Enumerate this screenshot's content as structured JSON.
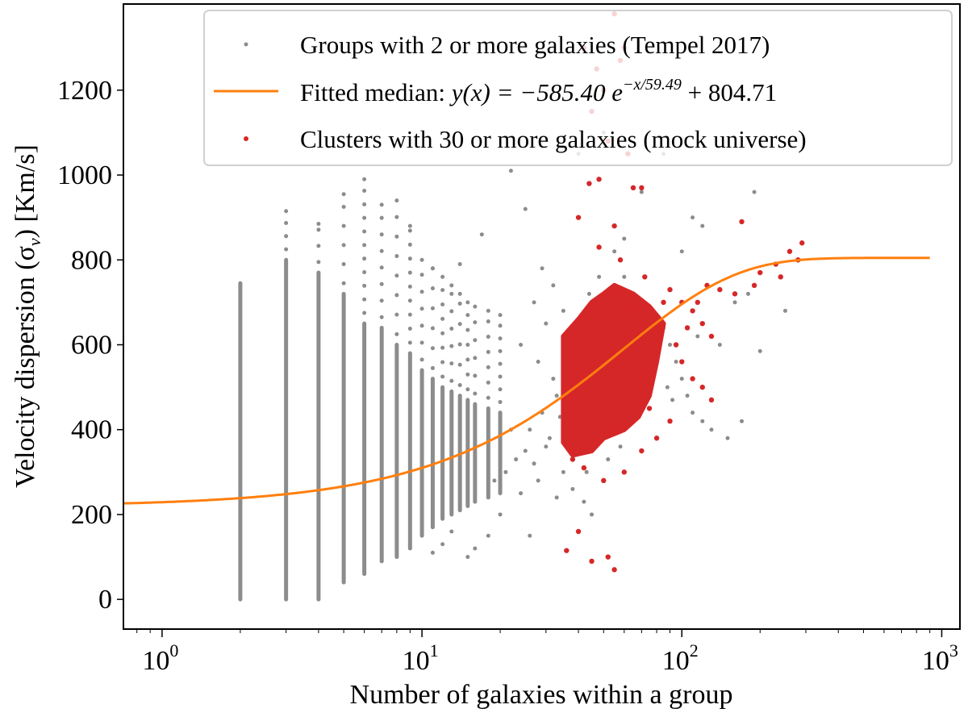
{
  "chart_data": {
    "type": "scatter",
    "xlabel": "Number of galaxies within a group",
    "ylabel": "Velocity dispersion (σ",
    "ylabel_sub": "v",
    "ylabel_unit": ") [Km/s]",
    "xscale": "log",
    "xlim": [
      0.71,
      1175
    ],
    "ylim": [
      -70,
      1403
    ],
    "xticks": [
      {
        "base": "10",
        "exp": "0",
        "value": 1
      },
      {
        "base": "10",
        "exp": "1",
        "value": 10
      },
      {
        "base": "10",
        "exp": "2",
        "value": 100
      },
      {
        "base": "10",
        "exp": "3",
        "value": 1000
      }
    ],
    "yticks": [
      0,
      200,
      400,
      600,
      800,
      1000,
      1200
    ],
    "grid": false,
    "legend": {
      "placement": "top-right",
      "entries": [
        {
          "label": "Groups with 2 or more galaxies (Tempel 2017)",
          "marker": "dot",
          "color": "#8c8c8c"
        },
        {
          "label_prefix": "Fitted median: ",
          "label_formula": "y(x) = −585.40 e",
          "label_exp": "−x/59.49",
          "label_suffix": " + 804.71",
          "marker": "line",
          "color": "#ff7f0e"
        },
        {
          "label": "Clusters with 30 or more galaxies (mock universe)",
          "marker": "dot",
          "color": "#d62728"
        }
      ]
    },
    "fit": {
      "a": -585.4,
      "b": 59.49,
      "c": 804.71,
      "x_range": [
        0.71,
        900
      ],
      "color": "#ff7f0e"
    },
    "groups": {
      "color": "#8c8c8c",
      "columns": [
        {
          "n": 2,
          "dense": [
            0,
            745
          ],
          "max": 745
        },
        {
          "n": 3,
          "dense": [
            0,
            800
          ],
          "max": 915
        },
        {
          "n": 4,
          "dense": [
            0,
            770
          ],
          "max": 885
        },
        {
          "n": 5,
          "dense": [
            40,
            720
          ],
          "max": 955
        },
        {
          "n": 6,
          "dense": [
            60,
            650
          ],
          "max": 990
        },
        {
          "n": 7,
          "dense": [
            90,
            640
          ],
          "max": 930
        },
        {
          "n": 8,
          "dense": [
            100,
            600
          ],
          "max": 940
        },
        {
          "n": 9,
          "dense": [
            120,
            580
          ],
          "max": 880
        },
        {
          "n": 10,
          "dense": [
            150,
            540
          ],
          "max": 800
        },
        {
          "n": 11,
          "dense": [
            170,
            520
          ],
          "max": 780
        },
        {
          "n": 12,
          "dense": [
            190,
            500
          ],
          "max": 760
        },
        {
          "n": 13,
          "dense": [
            200,
            490
          ],
          "max": 740
        },
        {
          "n": 14,
          "dense": [
            210,
            480
          ],
          "max": 720
        },
        {
          "n": 15,
          "dense": [
            220,
            470
          ],
          "max": 700
        },
        {
          "n": 16,
          "dense": [
            230,
            460
          ],
          "max": 690
        },
        {
          "n": 18,
          "dense": [
            240,
            450
          ],
          "max": 680
        },
        {
          "n": 20,
          "dense": [
            250,
            440
          ],
          "max": 670
        }
      ],
      "points": [
        [
          22,
          1010
        ],
        [
          25,
          920
        ],
        [
          17,
          860
        ],
        [
          14,
          790
        ],
        [
          27,
          700
        ],
        [
          30,
          650
        ],
        [
          24,
          600
        ],
        [
          28,
          560
        ],
        [
          32,
          520
        ],
        [
          33,
          480
        ],
        [
          29,
          440
        ],
        [
          26,
          400
        ],
        [
          31,
          380
        ],
        [
          23,
          330
        ],
        [
          21,
          300
        ],
        [
          19,
          280
        ],
        [
          35,
          300
        ],
        [
          38,
          260
        ],
        [
          42,
          230
        ],
        [
          45,
          200
        ],
        [
          40,
          660
        ],
        [
          44,
          720
        ],
        [
          48,
          760
        ],
        [
          55,
          820
        ],
        [
          60,
          760
        ],
        [
          65,
          700
        ],
        [
          75,
          680
        ],
        [
          85,
          640
        ],
        [
          90,
          600
        ],
        [
          95,
          560
        ],
        [
          100,
          520
        ],
        [
          105,
          480
        ],
        [
          110,
          440
        ],
        [
          120,
          420
        ],
        [
          130,
          400
        ],
        [
          150,
          380
        ],
        [
          170,
          420
        ],
        [
          100,
          820
        ],
        [
          120,
          880
        ],
        [
          190,
          960
        ],
        [
          250,
          680
        ],
        [
          200,
          585
        ],
        [
          60,
          850
        ],
        [
          70,
          960
        ],
        [
          85,
          1050
        ],
        [
          50,
          1100
        ],
        [
          40,
          1050
        ],
        [
          36,
          560
        ],
        [
          34,
          430
        ],
        [
          30,
          360
        ],
        [
          27,
          320
        ],
        [
          25,
          350
        ],
        [
          22,
          400
        ],
        [
          20,
          200
        ],
        [
          18,
          150
        ],
        [
          16,
          120
        ],
        [
          15,
          100
        ],
        [
          13,
          160
        ],
        [
          12,
          130
        ],
        [
          11,
          110
        ],
        [
          26,
          150
        ],
        [
          24,
          250
        ],
        [
          28,
          280
        ],
        [
          33,
          240
        ],
        [
          37,
          420
        ],
        [
          39,
          340
        ],
        [
          43,
          300
        ],
        [
          47,
          380
        ],
        [
          52,
          330
        ],
        [
          58,
          360
        ],
        [
          62,
          420
        ],
        [
          68,
          470
        ],
        [
          72,
          520
        ],
        [
          80,
          560
        ],
        [
          88,
          500
        ],
        [
          92,
          470
        ],
        [
          115,
          620
        ],
        [
          140,
          600
        ],
        [
          160,
          700
        ],
        [
          180,
          720
        ],
        [
          110,
          900
        ],
        [
          35,
          680
        ],
        [
          32,
          740
        ],
        [
          29,
          780
        ]
      ]
    },
    "clusters": {
      "color": "#d62728",
      "dense_region": [
        [
          35,
          370
        ],
        [
          35,
          620
        ],
        [
          40,
          660
        ],
        [
          45,
          700
        ],
        [
          50,
          720
        ],
        [
          55,
          740
        ],
        [
          65,
          720
        ],
        [
          75,
          690
        ],
        [
          85,
          650
        ],
        [
          80,
          560
        ],
        [
          75,
          480
        ],
        [
          68,
          430
        ],
        [
          60,
          400
        ],
        [
          50,
          380
        ],
        [
          45,
          350
        ],
        [
          38,
          340
        ]
      ],
      "points": [
        [
          42,
          1300
        ],
        [
          47,
          1250
        ],
        [
          55,
          1380
        ],
        [
          58,
          1270
        ],
        [
          60,
          1300
        ],
        [
          50,
          1200
        ],
        [
          45,
          1150
        ],
        [
          52,
          1080
        ],
        [
          62,
          1050
        ],
        [
          48,
          990
        ],
        [
          44,
          980
        ],
        [
          65,
          970
        ],
        [
          70,
          970
        ],
        [
          40,
          900
        ],
        [
          55,
          880
        ],
        [
          48,
          830
        ],
        [
          58,
          800
        ],
        [
          72,
          760
        ],
        [
          90,
          730
        ],
        [
          100,
          700
        ],
        [
          110,
          680
        ],
        [
          120,
          650
        ],
        [
          130,
          620
        ],
        [
          170,
          890
        ],
        [
          200,
          770
        ],
        [
          230,
          790
        ],
        [
          260,
          820
        ],
        [
          290,
          840
        ],
        [
          280,
          800
        ],
        [
          240,
          760
        ],
        [
          190,
          740
        ],
        [
          160,
          720
        ],
        [
          140,
          730
        ],
        [
          85,
          700
        ],
        [
          80,
          580
        ],
        [
          100,
          560
        ],
        [
          110,
          520
        ],
        [
          120,
          500
        ],
        [
          130,
          470
        ],
        [
          38,
          330
        ],
        [
          42,
          310
        ],
        [
          36,
          115
        ],
        [
          40,
          160
        ],
        [
          45,
          90
        ],
        [
          52,
          100
        ],
        [
          55,
          70
        ],
        [
          50,
          280
        ],
        [
          60,
          300
        ],
        [
          70,
          350
        ],
        [
          80,
          380
        ],
        [
          90,
          420
        ],
        [
          75,
          450
        ],
        [
          95,
          600
        ],
        [
          105,
          640
        ],
        [
          115,
          700
        ],
        [
          125,
          740
        ],
        [
          65,
          680
        ],
        [
          52,
          720
        ],
        [
          45,
          680
        ]
      ]
    }
  }
}
